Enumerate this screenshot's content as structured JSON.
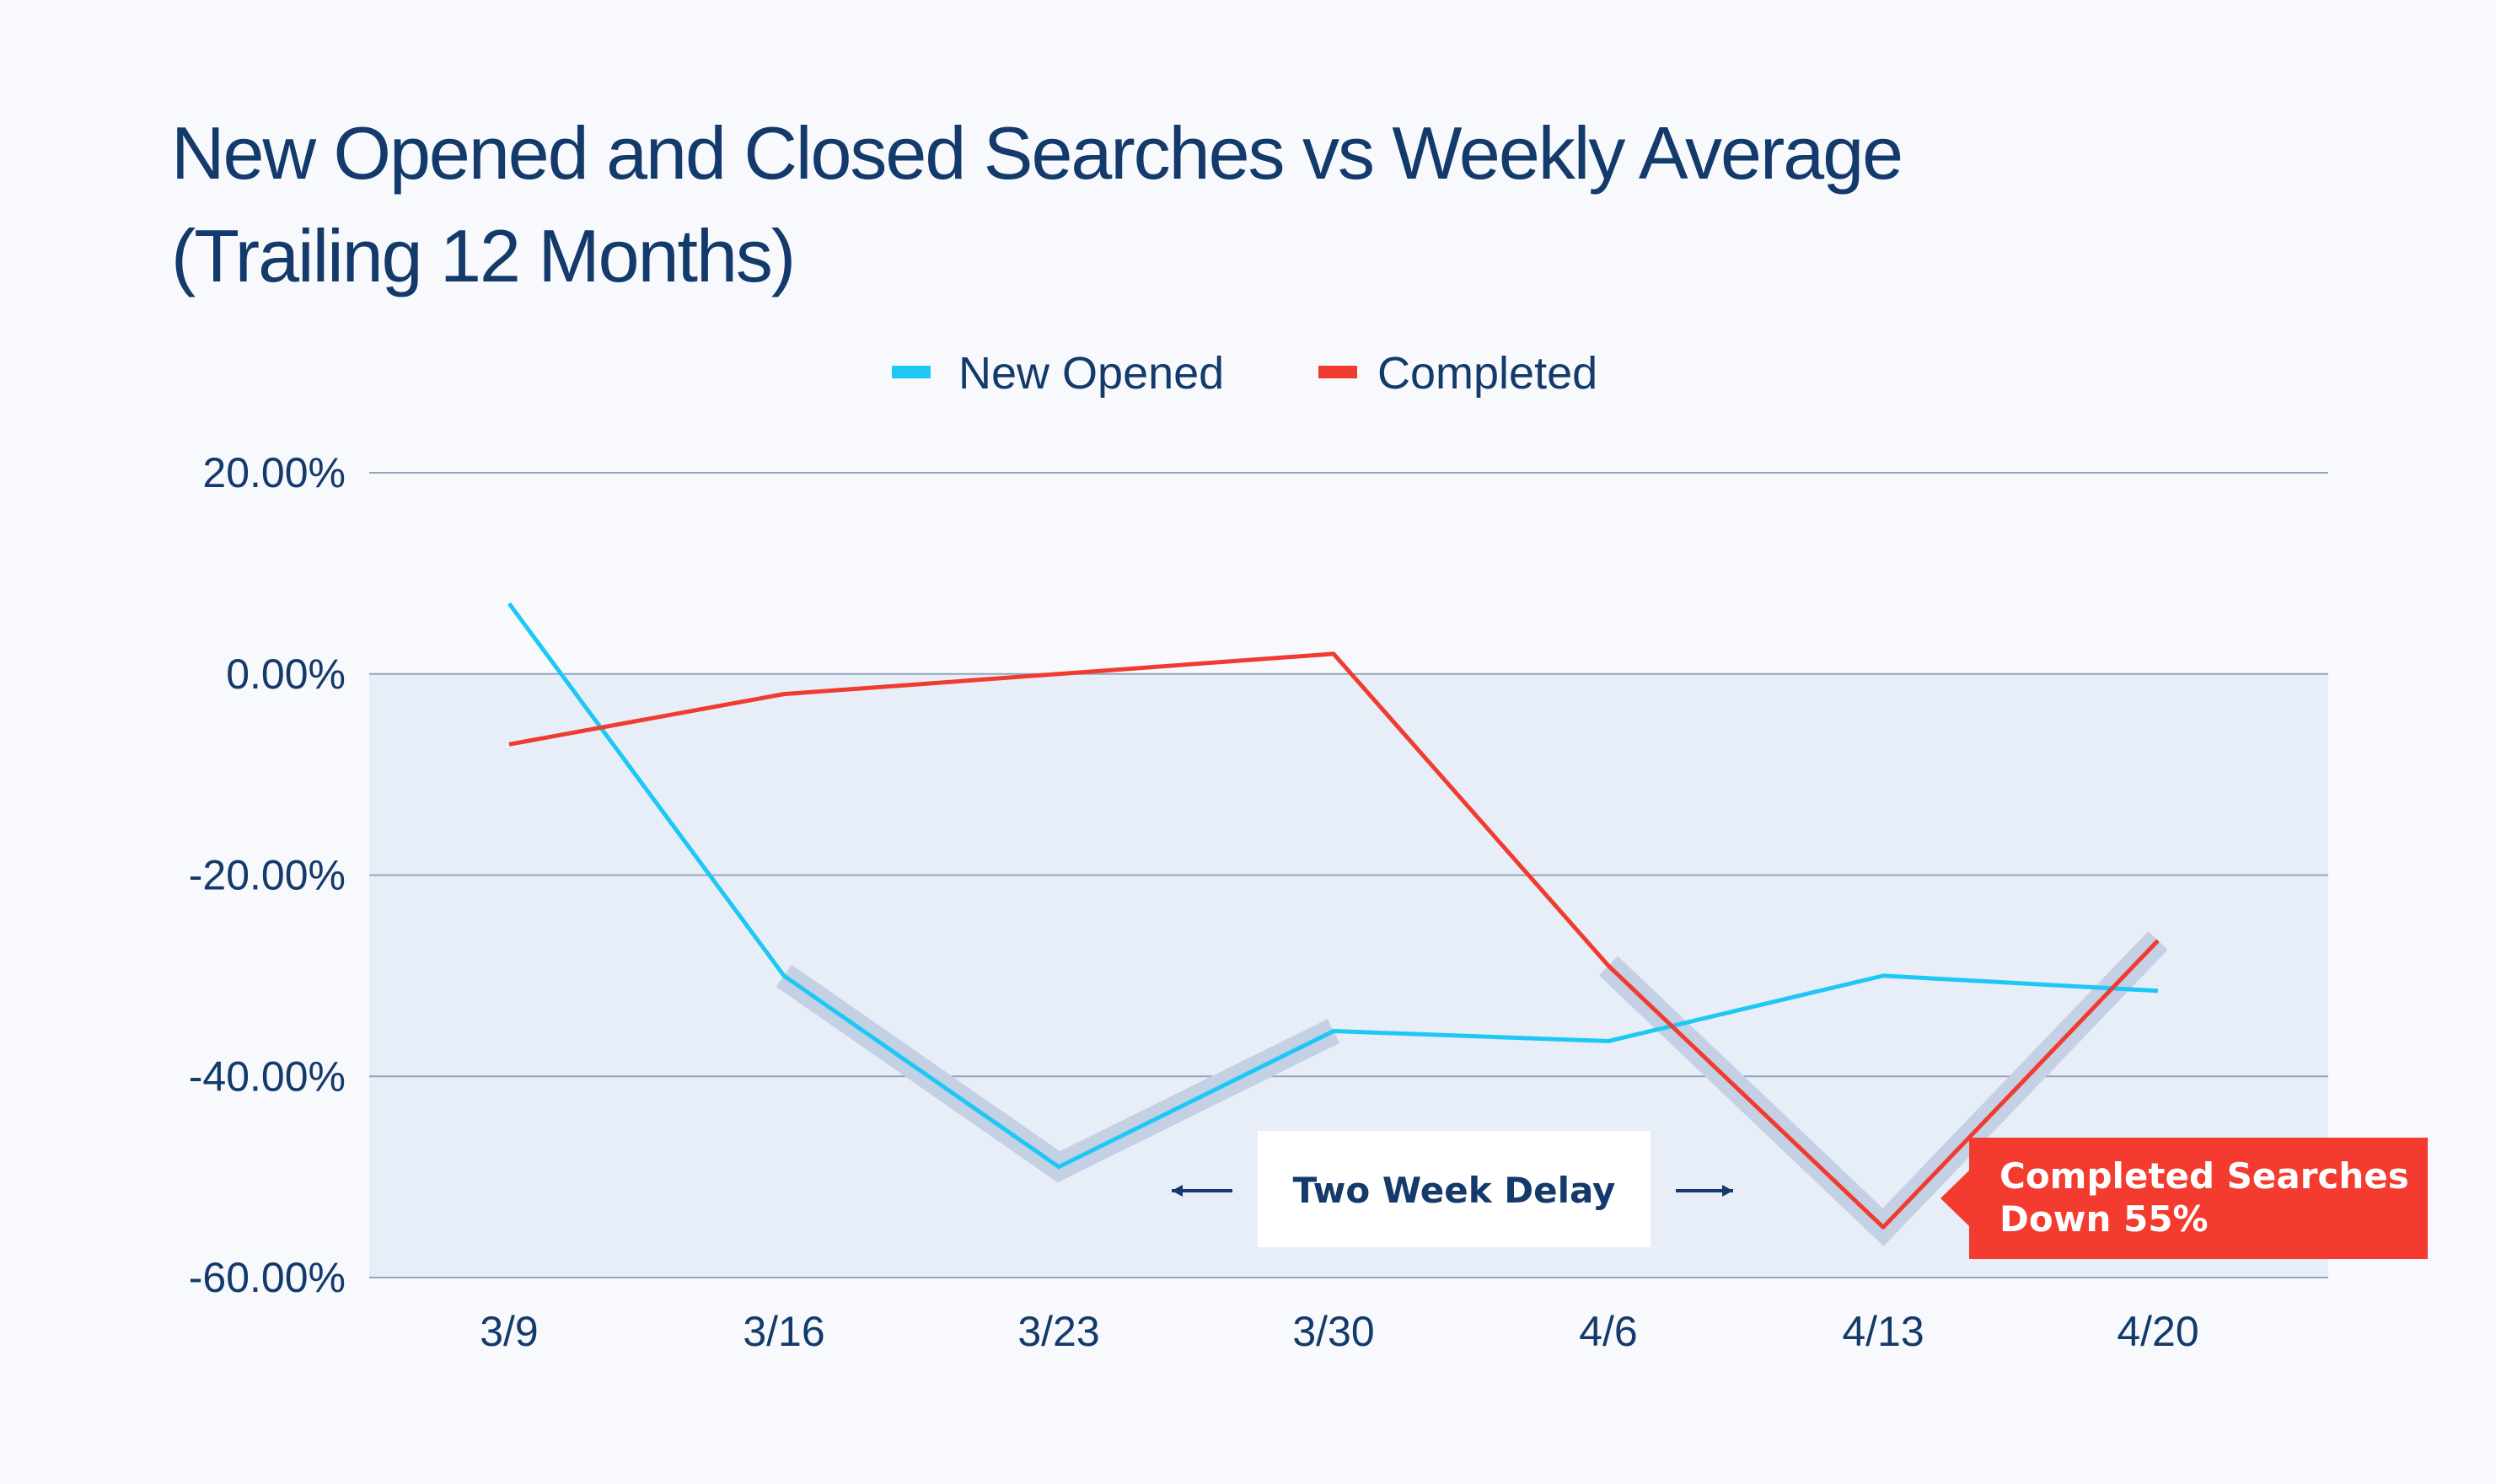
{
  "chart_data": {
    "type": "line",
    "title_lines": [
      "New Opened and Closed Searches vs Weekly Average",
      "(Trailing 12 Months)"
    ],
    "categories": [
      "3/9",
      "3/16",
      "3/23",
      "3/30",
      "4/6",
      "4/13",
      "4/20"
    ],
    "series": [
      {
        "name": "New Opened",
        "color": "#1ec8f5",
        "values": [
          7.0,
          -30.0,
          -49.0,
          -35.5,
          -36.5,
          -30.0,
          -31.5
        ]
      },
      {
        "name": "Completed",
        "color": "#f03c30",
        "values": [
          -7.0,
          -2.0,
          0.0,
          2.0,
          -29.0,
          -55.0,
          -26.5
        ]
      }
    ],
    "ylim": [
      -60,
      20
    ],
    "yticks": [
      20,
      0,
      -20,
      -40,
      -60
    ],
    "ytick_labels": [
      "20.00%",
      "0.00%",
      "-20.00%",
      "-40.00%",
      "-60.00%"
    ],
    "grid": true,
    "legend_position": "top-center",
    "shaded_region": {
      "y_from": -60,
      "y_to": 0,
      "color": "#e8eef7"
    },
    "highlight_segments": [
      {
        "series": "New Opened",
        "from_category": "3/16",
        "to_category": "3/30"
      },
      {
        "series": "Completed",
        "from_category": "4/6",
        "to_category": "4/20"
      }
    ],
    "annotations": [
      {
        "text": "Two Week Delay",
        "style": "box-with-arrows"
      },
      {
        "lines": [
          "Completed Searches",
          "Down 55%"
        ],
        "style": "callout",
        "color": "#f33b2f"
      }
    ]
  }
}
